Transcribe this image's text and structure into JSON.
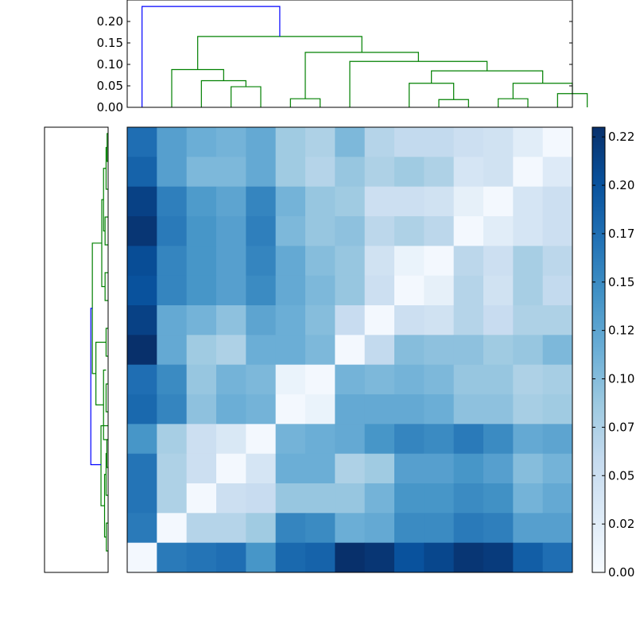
{
  "chart_data": {
    "type": "heatmap",
    "title": "",
    "colormap": "Blues",
    "colorbar": {
      "min": 0.0,
      "max": 0.23,
      "tick_values": [
        0.0,
        0.025,
        0.05,
        0.075,
        0.1,
        0.125,
        0.15,
        0.175,
        0.2,
        0.225
      ],
      "tick_labels": [
        "0.00",
        "0.02",
        "0.05",
        "0.07",
        "0.10",
        "0.12",
        "0.15",
        "0.17",
        "0.20",
        "0.22"
      ]
    },
    "top_dendrogram": {
      "ylim": [
        0,
        0.25
      ],
      "tick_values": [
        0.0,
        0.05,
        0.1,
        0.15,
        0.2
      ],
      "tick_labels": [
        "0.00",
        "0.05",
        "0.10",
        "0.15",
        "0.20"
      ],
      "link_colors": {
        "root": "#0000ff",
        "cluster": "#008000"
      }
    },
    "left_dendrogram": {
      "link_colors": {
        "root": "#0000ff",
        "cluster": "#008000"
      }
    },
    "matrix": [
      [
        0.175,
        0.13,
        0.115,
        0.11,
        0.12,
        0.085,
        0.075,
        0.105,
        0.07,
        0.06,
        0.06,
        0.05,
        0.045,
        0.025,
        0.005
      ],
      [
        0.185,
        0.13,
        0.105,
        0.105,
        0.12,
        0.085,
        0.07,
        0.09,
        0.075,
        0.085,
        0.075,
        0.04,
        0.045,
        0.005,
        0.03
      ],
      [
        0.215,
        0.16,
        0.135,
        0.125,
        0.155,
        0.11,
        0.09,
        0.085,
        0.05,
        0.05,
        0.045,
        0.02,
        0.005,
        0.04,
        0.05
      ],
      [
        0.225,
        0.165,
        0.14,
        0.13,
        0.16,
        0.105,
        0.09,
        0.095,
        0.065,
        0.075,
        0.065,
        0.005,
        0.025,
        0.04,
        0.05
      ],
      [
        0.205,
        0.155,
        0.14,
        0.13,
        0.155,
        0.12,
        0.1,
        0.09,
        0.045,
        0.015,
        0.005,
        0.065,
        0.05,
        0.08,
        0.065
      ],
      [
        0.2,
        0.155,
        0.14,
        0.13,
        0.15,
        0.12,
        0.105,
        0.09,
        0.05,
        0.005,
        0.02,
        0.07,
        0.045,
        0.08,
        0.06
      ],
      [
        0.215,
        0.12,
        0.11,
        0.095,
        0.125,
        0.115,
        0.1,
        0.055,
        0.005,
        0.05,
        0.045,
        0.07,
        0.055,
        0.075,
        0.075
      ],
      [
        0.23,
        0.12,
        0.085,
        0.075,
        0.115,
        0.115,
        0.105,
        0.005,
        0.06,
        0.1,
        0.095,
        0.095,
        0.085,
        0.09,
        0.105
      ],
      [
        0.175,
        0.15,
        0.09,
        0.11,
        0.105,
        0.015,
        0.005,
        0.11,
        0.105,
        0.11,
        0.105,
        0.09,
        0.09,
        0.075,
        0.08
      ],
      [
        0.18,
        0.155,
        0.095,
        0.115,
        0.11,
        0.005,
        0.015,
        0.12,
        0.12,
        0.12,
        0.115,
        0.095,
        0.095,
        0.08,
        0.085
      ],
      [
        0.14,
        0.08,
        0.05,
        0.035,
        0.005,
        0.11,
        0.115,
        0.12,
        0.14,
        0.155,
        0.15,
        0.165,
        0.15,
        0.12,
        0.125
      ],
      [
        0.17,
        0.075,
        0.05,
        0.005,
        0.04,
        0.115,
        0.115,
        0.075,
        0.085,
        0.13,
        0.13,
        0.14,
        0.13,
        0.1,
        0.11
      ],
      [
        0.17,
        0.075,
        0.005,
        0.05,
        0.055,
        0.09,
        0.09,
        0.09,
        0.11,
        0.14,
        0.14,
        0.15,
        0.145,
        0.11,
        0.12
      ],
      [
        0.165,
        0.005,
        0.07,
        0.07,
        0.085,
        0.155,
        0.15,
        0.115,
        0.12,
        0.15,
        0.15,
        0.165,
        0.16,
        0.13,
        0.13
      ],
      [
        0.005,
        0.165,
        0.17,
        0.175,
        0.14,
        0.18,
        0.185,
        0.23,
        0.225,
        0.2,
        0.21,
        0.225,
        0.22,
        0.19,
        0.175
      ]
    ]
  }
}
